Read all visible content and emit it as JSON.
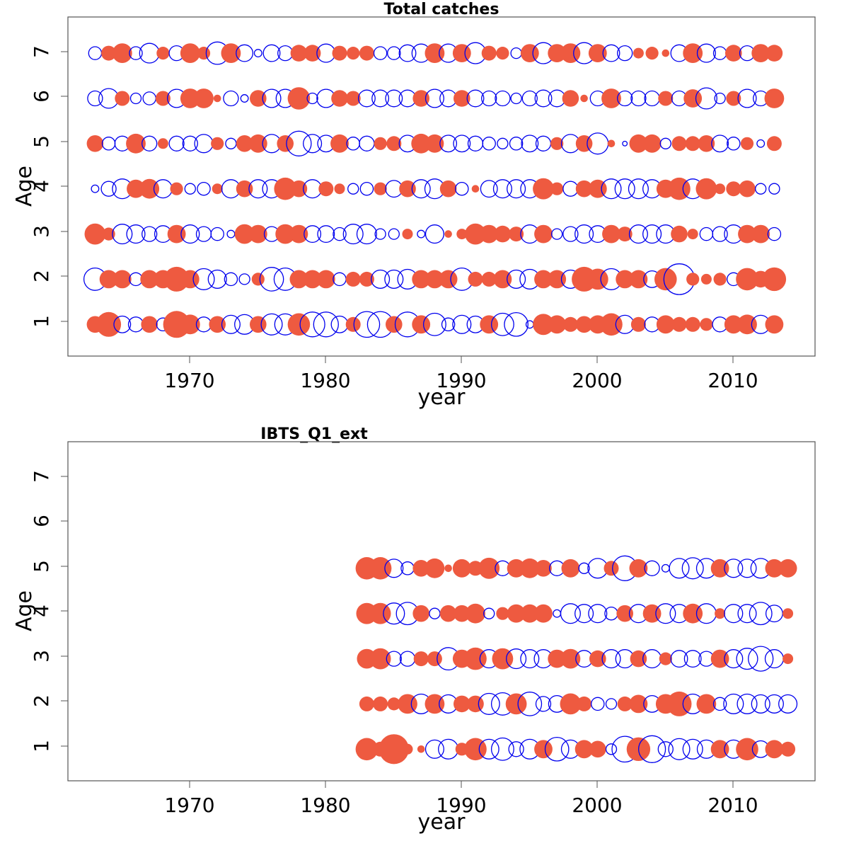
{
  "colors": {
    "positive": "#EE5A40",
    "negative": "#0000EE"
  },
  "chart_data": [
    {
      "type": "scatter",
      "title": "Total catches",
      "xlabel": "year",
      "ylabel": "Age",
      "xlim": [
        1961,
        2016
      ],
      "ylim": [
        0.3,
        7.8
      ],
      "xticks": [
        "1970",
        "1980",
        "1990",
        "2000",
        "2010"
      ],
      "yticks": [
        "1",
        "2",
        "3",
        "4",
        "5",
        "6",
        "7"
      ],
      "size_scale_max": 0.38,
      "years": [
        1963,
        1964,
        1965,
        1966,
        1967,
        1968,
        1969,
        1970,
        1971,
        1972,
        1973,
        1974,
        1975,
        1976,
        1977,
        1978,
        1979,
        1980,
        1981,
        1982,
        1983,
        1984,
        1985,
        1986,
        1987,
        1988,
        1989,
        1990,
        1991,
        1992,
        1993,
        1994,
        1995,
        1996,
        1997,
        1998,
        1999,
        2000,
        2001,
        2002,
        2003,
        2004,
        2005,
        2006,
        2007,
        2008,
        2009,
        2010,
        2011,
        2012,
        2013
      ],
      "residuals": {
        "1": [
          0.25,
          0.55,
          -0.25,
          -0.2,
          0.25,
          -0.15,
          0.65,
          0.35,
          -0.2,
          0.25,
          -0.3,
          -0.35,
          0.25,
          -0.4,
          -0.4,
          0.45,
          -0.55,
          -0.55,
          -0.25,
          0.2,
          -0.6,
          -0.6,
          0.25,
          -0.55,
          0.3,
          -0.45,
          -0.15,
          -0.3,
          -0.25,
          0.3,
          -0.45,
          -0.5,
          -0.05,
          0.4,
          0.3,
          0.2,
          0.25,
          0.3,
          0.45,
          -0.3,
          0.2,
          -0.2,
          0.3,
          0.2,
          0.2,
          0.15,
          -0.2,
          0.3,
          0.35,
          -0.3,
          0.3
        ],
        "2": [
          -0.45,
          0.3,
          0.3,
          -0.15,
          0.3,
          0.3,
          0.55,
          0.3,
          -0.4,
          -0.3,
          -0.15,
          -0.1,
          0.15,
          -0.5,
          -0.45,
          0.3,
          0.3,
          0.3,
          -0.15,
          0.2,
          0.2,
          -0.3,
          -0.3,
          -0.35,
          0.3,
          0.3,
          0.3,
          -0.45,
          0.2,
          0.2,
          0.3,
          -0.3,
          -0.35,
          0.3,
          0.3,
          -0.3,
          0.55,
          0.4,
          -0.4,
          0.3,
          0.3,
          -0.25,
          0.45,
          -0.85,
          0.15,
          0.1,
          0.15,
          -0.15,
          0.45,
          0.25,
          0.5
        ],
        "3": [
          0.4,
          0.15,
          -0.35,
          -0.3,
          -0.2,
          -0.25,
          0.3,
          -0.3,
          -0.2,
          -0.15,
          -0.05,
          0.35,
          0.3,
          -0.2,
          0.35,
          0.3,
          -0.25,
          -0.25,
          -0.15,
          -0.35,
          -0.35,
          -0.1,
          -0.1,
          0.1,
          -0.05,
          -0.3,
          0.05,
          0.1,
          0.4,
          0.3,
          0.25,
          0.2,
          -0.3,
          0.3,
          -0.1,
          -0.2,
          -0.3,
          -0.25,
          0.3,
          0.2,
          -0.3,
          -0.3,
          -0.3,
          0.25,
          0.1,
          -0.15,
          -0.2,
          -0.3,
          0.3,
          0.3,
          -0.15
        ],
        "4": [
          -0.05,
          -0.2,
          -0.35,
          0.3,
          0.35,
          -0.3,
          0.15,
          -0.1,
          -0.15,
          0.1,
          -0.3,
          0.25,
          -0.3,
          -0.3,
          0.45,
          0.25,
          -0.3,
          0.2,
          0.1,
          -0.1,
          -0.15,
          0.15,
          -0.25,
          0.25,
          -0.3,
          -0.35,
          0.25,
          -0.15,
          0.05,
          -0.25,
          -0.3,
          -0.3,
          -0.3,
          0.4,
          0.15,
          -0.2,
          0.25,
          0.3,
          -0.35,
          -0.35,
          -0.35,
          -0.3,
          0.3,
          0.45,
          -0.35,
          0.4,
          0.1,
          0.2,
          0.25,
          -0.1,
          -0.1
        ],
        "5": [
          0.25,
          -0.15,
          -0.2,
          0.35,
          -0.2,
          0.1,
          -0.2,
          -0.2,
          -0.3,
          0.15,
          -0.1,
          0.25,
          0.3,
          -0.3,
          0.25,
          -0.55,
          -0.3,
          -0.25,
          0.3,
          -0.15,
          -0.2,
          0.15,
          0.2,
          -0.25,
          0.35,
          0.3,
          -0.25,
          -0.25,
          -0.2,
          -0.15,
          -0.1,
          -0.15,
          -0.25,
          -0.2,
          0.15,
          -0.3,
          0.25,
          -0.4,
          0.05,
          -0.02,
          0.3,
          0.3,
          -0.1,
          0.2,
          0.2,
          0.25,
          -0.25,
          -0.15,
          0.15,
          -0.05,
          0.2
        ],
        "6": [
          -0.2,
          -0.35,
          0.2,
          -0.1,
          -0.15,
          0.2,
          -0.3,
          0.35,
          0.35,
          0.05,
          -0.2,
          -0.05,
          0.25,
          -0.3,
          -0.3,
          0.45,
          -0.1,
          -0.3,
          0.25,
          0.2,
          -0.25,
          -0.25,
          -0.25,
          -0.25,
          0.25,
          -0.3,
          -0.25,
          0.25,
          -0.25,
          -0.2,
          -0.2,
          -0.1,
          -0.2,
          -0.25,
          -0.25,
          0.25,
          0.05,
          -0.2,
          0.35,
          -0.2,
          -0.2,
          -0.2,
          0.2,
          -0.2,
          0.3,
          -0.4,
          -0.1,
          0.2,
          -0.3,
          -0.2,
          0.35
        ],
        "7": [
          -0.15,
          0.2,
          0.35,
          -0.15,
          -0.35,
          0.15,
          -0.2,
          0.35,
          0.15,
          -0.45,
          0.35,
          -0.25,
          -0.05,
          -0.25,
          -0.2,
          0.25,
          0.25,
          -0.3,
          0.2,
          0.15,
          0.2,
          -0.15,
          -0.15,
          -0.25,
          -0.3,
          0.35,
          -0.3,
          0.3,
          -0.4,
          0.2,
          0.15,
          -0.1,
          0.3,
          -0.4,
          0.3,
          0.35,
          -0.4,
          0.3,
          -0.25,
          -0.2,
          0.1,
          0.15,
          0.05,
          -0.25,
          0.35,
          -0.3,
          -0.15,
          0.25,
          -0.2,
          0.3,
          0.25
        ]
      }
    },
    {
      "type": "scatter",
      "title": "IBTS_Q1_ext",
      "xlabel": "year",
      "ylabel": "Age",
      "xlim": [
        1961,
        2016
      ],
      "ylim": [
        0.3,
        7.8
      ],
      "xticks": [
        "1970",
        "1980",
        "1990",
        "2000",
        "2010"
      ],
      "yticks": [
        "1",
        "2",
        "3",
        "4",
        "5",
        "6",
        "7"
      ],
      "size_scale_max": 0.38,
      "years": [
        1983,
        1984,
        1985,
        1986,
        1987,
        1988,
        1989,
        1990,
        1991,
        1992,
        1993,
        1994,
        1995,
        1996,
        1997,
        1998,
        1999,
        2000,
        2001,
        2002,
        2003,
        2004,
        2005,
        2006,
        2007,
        2008,
        2009,
        2010,
        2011,
        2012,
        2013,
        2014
      ],
      "residuals": {
        "1": [
          0.45,
          0.2,
          0.8,
          0.1,
          0.05,
          -0.3,
          -0.35,
          0.15,
          0.45,
          -0.35,
          -0.45,
          -0.2,
          -0.35,
          0.3,
          -0.5,
          -0.3,
          0.3,
          0.25,
          -0.1,
          -0.6,
          0.5,
          -0.65,
          -0.2,
          -0.4,
          -0.35,
          -0.3,
          0.3,
          -0.3,
          0.45,
          -0.25,
          0.3,
          0.2
        ],
        "2": [
          0.2,
          0.2,
          0.15,
          0.35,
          -0.35,
          0.35,
          -0.3,
          0.25,
          0.25,
          -0.4,
          -0.45,
          0.4,
          -0.5,
          -0.2,
          -0.25,
          0.4,
          0.2,
          -0.15,
          -0.1,
          0.2,
          0.3,
          -0.25,
          0.35,
          0.55,
          -0.35,
          0.35,
          -0.15,
          -0.35,
          -0.35,
          -0.3,
          -0.3,
          -0.3
        ],
        "3": [
          0.35,
          0.4,
          -0.2,
          -0.2,
          0.2,
          0.2,
          -0.45,
          0.3,
          0.45,
          -0.3,
          0.4,
          -0.35,
          -0.3,
          -0.3,
          0.3,
          0.35,
          -0.25,
          0.25,
          -0.3,
          -0.3,
          0.25,
          -0.3,
          0.15,
          -0.25,
          -0.25,
          -0.2,
          0.3,
          -0.3,
          -0.4,
          -0.55,
          -0.3,
          0.1
        ],
        "4": [
          0.4,
          0.4,
          -0.4,
          -0.45,
          0.25,
          -0.1,
          0.25,
          0.25,
          0.35,
          -0.1,
          0.15,
          0.3,
          0.3,
          0.3,
          -0.05,
          -0.35,
          -0.3,
          -0.3,
          -0.15,
          0.25,
          -0.3,
          0.3,
          -0.35,
          -0.3,
          0.35,
          -0.35,
          0.1,
          -0.3,
          -0.3,
          -0.45,
          -0.25,
          0.1
        ],
        "5": [
          0.45,
          0.45,
          -0.3,
          -0.15,
          0.25,
          0.35,
          0.05,
          0.3,
          0.2,
          0.4,
          -0.2,
          0.3,
          0.35,
          0.25,
          -0.2,
          0.3,
          -0.1,
          -0.35,
          0.2,
          -0.55,
          0.3,
          -0.2,
          -0.05,
          -0.35,
          -0.4,
          -0.35,
          0.3,
          -0.3,
          -0.3,
          -0.35,
          0.3,
          0.3
        ]
      }
    }
  ]
}
